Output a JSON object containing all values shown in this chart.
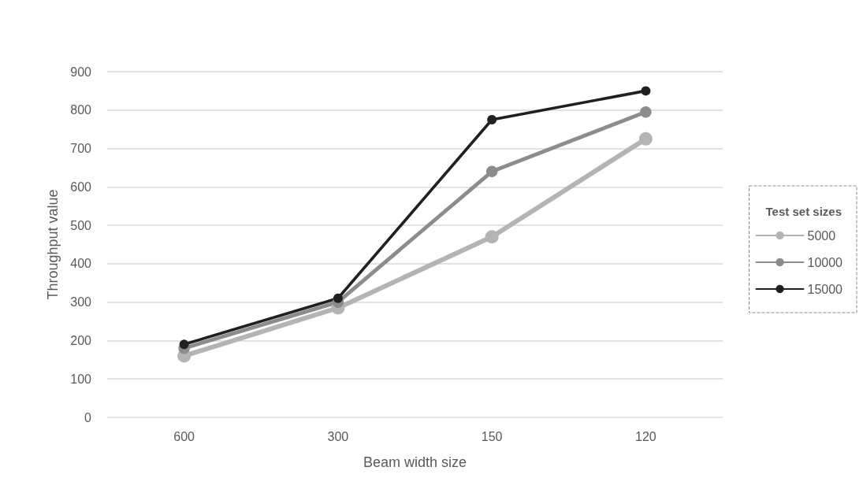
{
  "chart_data": {
    "type": "line",
    "xlabel": "Beam width size",
    "ylabel": "Throughput value",
    "legend_title": "Test set sizes",
    "categories": [
      "600",
      "300",
      "150",
      "120"
    ],
    "series": [
      {
        "name": "5000",
        "color": "#b4b4b4",
        "values": [
          160,
          285,
          470,
          725
        ]
      },
      {
        "name": "10000",
        "color": "#8c8c8c",
        "values": [
          180,
          300,
          640,
          795
        ]
      },
      {
        "name": "15000",
        "color": "#202020",
        "values": [
          190,
          310,
          775,
          850
        ]
      }
    ],
    "ylim": [
      0,
      900
    ],
    "yticks": [
      0,
      100,
      200,
      300,
      400,
      500,
      600,
      700,
      800,
      900
    ],
    "grid": "y",
    "legend": "right",
    "marker": "circle",
    "line_style": "solid"
  }
}
